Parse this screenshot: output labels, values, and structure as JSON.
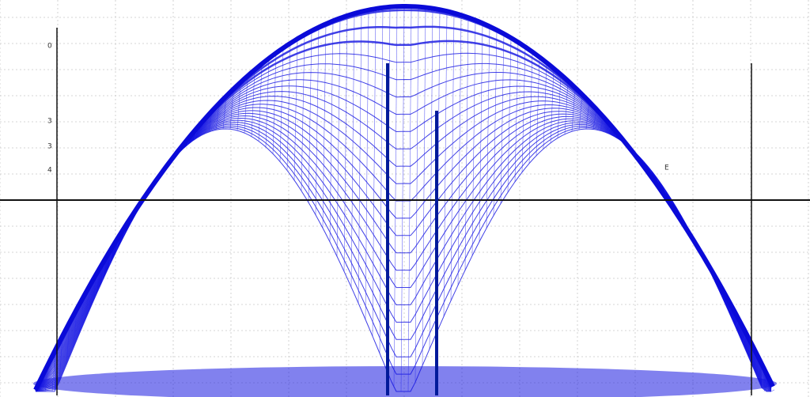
{
  "labels": [
    "0",
    "3",
    "3",
    "4",
    "E"
  ]
}
